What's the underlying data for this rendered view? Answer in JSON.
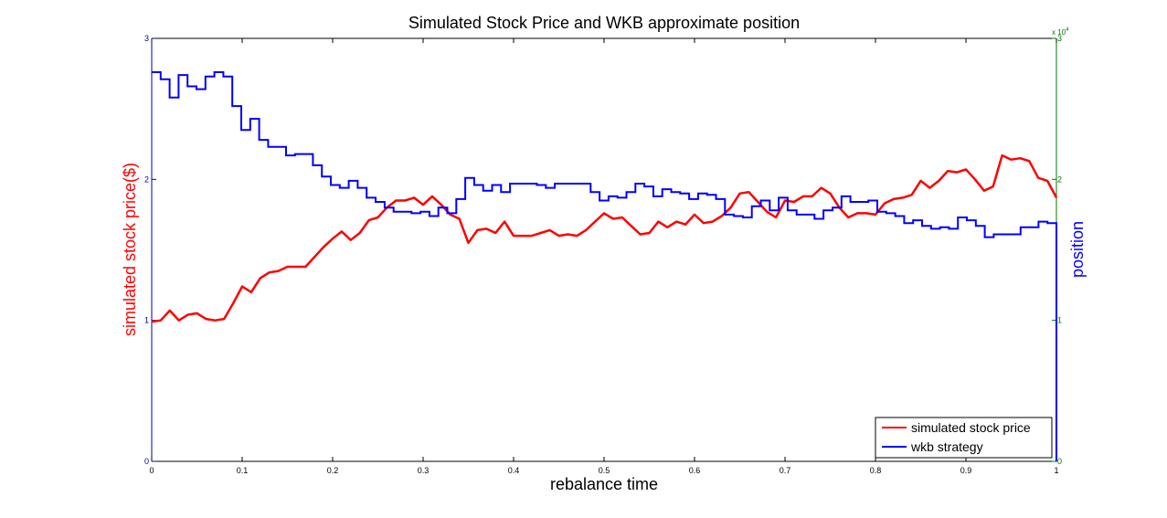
{
  "chart_data": {
    "type": "line",
    "title": "Simulated Stock Price and WKB approximate position",
    "xlabel": "rebalance time",
    "ylabel_left": "simulated stock price($)",
    "ylabel_right": "position",
    "right_axis_multiplier": "x 10^4",
    "right_axis_multiplier_base": "x 10",
    "right_axis_multiplier_exp": "4",
    "xlim": [
      0,
      1
    ],
    "ylim_left": [
      0,
      3
    ],
    "ylim_right": [
      0,
      3
    ],
    "x_ticks": [
      "0",
      "0.1",
      "0.2",
      "0.3",
      "0.4",
      "0.5",
      "0.6",
      "0.7",
      "0.8",
      "0.9",
      "1"
    ],
    "y_ticks_left": [
      "0",
      "1",
      "2",
      "3"
    ],
    "y_ticks_right": [
      "0",
      "1",
      "2",
      "3"
    ],
    "legend_position": "bottom-right",
    "colors": {
      "price": "#ff0000",
      "position": "#0000ff",
      "left_axis": "#0000aa",
      "right_axis": "#007700"
    },
    "series": [
      {
        "name": "simulated stock price",
        "axis": "left",
        "step": false,
        "points": [
          [
            0.0,
            0.99
          ],
          [
            0.01,
            1.0
          ],
          [
            0.02,
            1.07
          ],
          [
            0.03,
            1.0
          ],
          [
            0.04,
            1.04
          ],
          [
            0.05,
            1.05
          ],
          [
            0.06,
            1.01
          ],
          [
            0.07,
            1.0
          ],
          [
            0.08,
            1.01
          ],
          [
            0.09,
            1.12
          ],
          [
            0.1,
            1.24
          ],
          [
            0.11,
            1.2
          ],
          [
            0.12,
            1.3
          ],
          [
            0.13,
            1.34
          ],
          [
            0.14,
            1.35
          ],
          [
            0.15,
            1.38
          ],
          [
            0.16,
            1.38
          ],
          [
            0.17,
            1.38
          ],
          [
            0.18,
            1.45
          ],
          [
            0.19,
            1.52
          ],
          [
            0.2,
            1.58
          ],
          [
            0.21,
            1.63
          ],
          [
            0.22,
            1.57
          ],
          [
            0.23,
            1.62
          ],
          [
            0.24,
            1.71
          ],
          [
            0.25,
            1.73
          ],
          [
            0.26,
            1.8
          ],
          [
            0.27,
            1.85
          ],
          [
            0.28,
            1.85
          ],
          [
            0.29,
            1.87
          ],
          [
            0.3,
            1.82
          ],
          [
            0.31,
            1.88
          ],
          [
            0.32,
            1.82
          ],
          [
            0.33,
            1.75
          ],
          [
            0.34,
            1.72
          ],
          [
            0.35,
            1.55
          ],
          [
            0.36,
            1.64
          ],
          [
            0.37,
            1.65
          ],
          [
            0.38,
            1.62
          ],
          [
            0.39,
            1.7
          ],
          [
            0.4,
            1.6
          ],
          [
            0.41,
            1.6
          ],
          [
            0.42,
            1.6
          ],
          [
            0.43,
            1.62
          ],
          [
            0.44,
            1.64
          ],
          [
            0.45,
            1.6
          ],
          [
            0.46,
            1.61
          ],
          [
            0.47,
            1.6
          ],
          [
            0.48,
            1.64
          ],
          [
            0.49,
            1.7
          ],
          [
            0.5,
            1.76
          ],
          [
            0.51,
            1.72
          ],
          [
            0.52,
            1.73
          ],
          [
            0.53,
            1.67
          ],
          [
            0.54,
            1.61
          ],
          [
            0.55,
            1.62
          ],
          [
            0.56,
            1.7
          ],
          [
            0.57,
            1.66
          ],
          [
            0.58,
            1.7
          ],
          [
            0.59,
            1.68
          ],
          [
            0.6,
            1.75
          ],
          [
            0.61,
            1.69
          ],
          [
            0.62,
            1.7
          ],
          [
            0.63,
            1.74
          ],
          [
            0.64,
            1.8
          ],
          [
            0.65,
            1.9
          ],
          [
            0.66,
            1.91
          ],
          [
            0.67,
            1.84
          ],
          [
            0.68,
            1.77
          ],
          [
            0.69,
            1.73
          ],
          [
            0.7,
            1.85
          ],
          [
            0.71,
            1.84
          ],
          [
            0.72,
            1.88
          ],
          [
            0.73,
            1.88
          ],
          [
            0.74,
            1.94
          ],
          [
            0.75,
            1.9
          ],
          [
            0.76,
            1.8
          ],
          [
            0.77,
            1.73
          ],
          [
            0.78,
            1.76
          ],
          [
            0.79,
            1.76
          ],
          [
            0.8,
            1.75
          ],
          [
            0.81,
            1.83
          ],
          [
            0.82,
            1.86
          ],
          [
            0.83,
            1.87
          ],
          [
            0.84,
            1.89
          ],
          [
            0.85,
            1.99
          ],
          [
            0.86,
            1.94
          ],
          [
            0.87,
            1.99
          ],
          [
            0.88,
            2.06
          ],
          [
            0.89,
            2.05
          ],
          [
            0.9,
            2.07
          ],
          [
            0.91,
            2.0
          ],
          [
            0.92,
            1.92
          ],
          [
            0.93,
            1.95
          ],
          [
            0.94,
            2.17
          ],
          [
            0.95,
            2.14
          ],
          [
            0.96,
            2.15
          ],
          [
            0.97,
            2.13
          ],
          [
            0.98,
            2.01
          ],
          [
            0.99,
            1.99
          ],
          [
            1.0,
            1.87
          ]
        ]
      },
      {
        "name": "wkb strategy",
        "axis": "right",
        "step": true,
        "values": [
          2.76,
          2.71,
          2.58,
          2.74,
          2.66,
          2.64,
          2.73,
          2.76,
          2.73,
          2.52,
          2.35,
          2.43,
          2.28,
          2.23,
          2.23,
          2.17,
          2.18,
          2.18,
          2.1,
          2.02,
          1.96,
          1.94,
          1.99,
          1.94,
          1.87,
          1.84,
          1.8,
          1.77,
          1.77,
          1.76,
          1.77,
          1.74,
          1.8,
          1.76,
          1.86,
          2.01,
          1.96,
          1.92,
          1.96,
          1.91,
          1.97,
          1.97,
          1.97,
          1.96,
          1.94,
          1.97,
          1.97,
          1.97,
          1.97,
          1.91,
          1.85,
          1.88,
          1.87,
          1.91,
          1.97,
          1.95,
          1.88,
          1.93,
          1.91,
          1.9,
          1.86,
          1.9,
          1.89,
          1.86,
          1.75,
          1.74,
          1.73,
          1.81,
          1.85,
          1.78,
          1.87,
          1.78,
          1.75,
          1.75,
          1.72,
          1.78,
          1.8,
          1.88,
          1.84,
          1.84,
          1.85,
          1.77,
          1.76,
          1.74,
          1.69,
          1.71,
          1.67,
          1.65,
          1.66,
          1.65,
          1.73,
          1.71,
          1.67,
          1.59,
          1.61,
          1.61,
          1.61,
          1.66,
          1.66,
          1.7,
          1.69,
          0.0
        ]
      }
    ]
  }
}
